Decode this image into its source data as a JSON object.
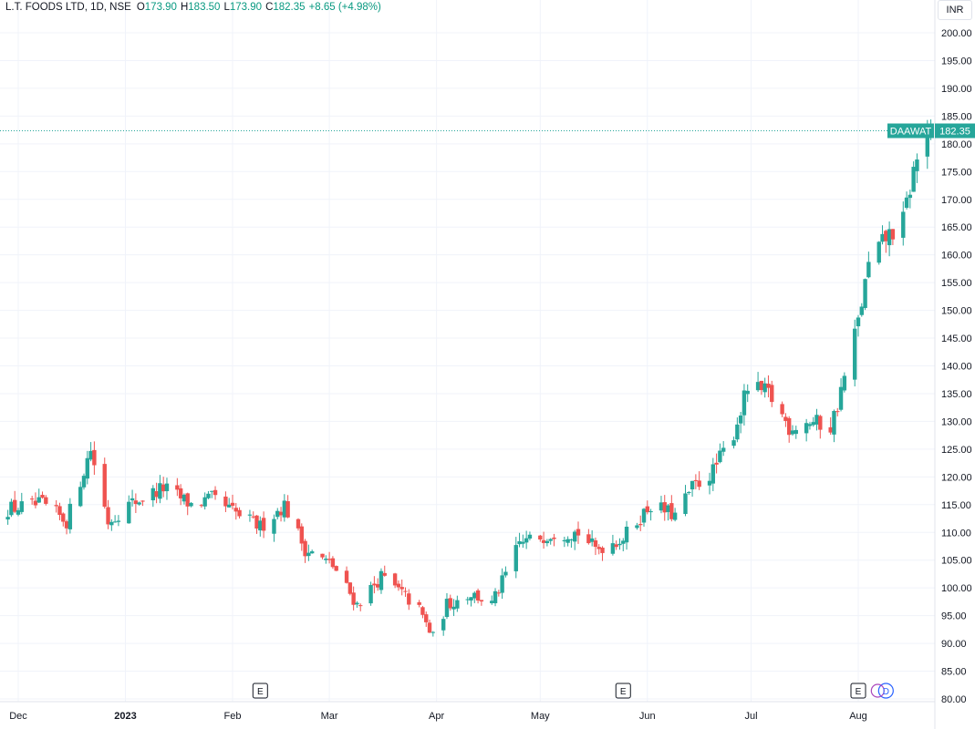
{
  "legend": {
    "symbol": "L.T. FOODS LTD, 1D, NSE",
    "open_label": "O",
    "open": "173.90",
    "high_label": "H",
    "high": "183.50",
    "low_label": "L",
    "low": "173.90",
    "close_label": "C",
    "close": "182.35",
    "change": "+8.65 (+4.98%)"
  },
  "currency": "INR",
  "price_tag": {
    "ticker": "DAAWAT",
    "price": "182.35"
  },
  "events": [
    {
      "label": "E",
      "date": "2023-02-09"
    },
    {
      "label": "E",
      "date": "2023-05-25"
    },
    {
      "label": "E",
      "date": "2023-08-01"
    },
    {
      "label": "D",
      "date": "2023-08-09"
    }
  ],
  "colors": {
    "up": "#26a69a",
    "down": "#ef5350",
    "grid": "#f0f3fa",
    "text": "#131722"
  },
  "chart_data": {
    "type": "candlestick",
    "y_axis_ticks": [
      "80.00",
      "85.00",
      "90.00",
      "95.00",
      "100.00",
      "105.00",
      "110.00",
      "115.00",
      "120.00",
      "125.00",
      "130.00",
      "135.00",
      "140.00",
      "145.00",
      "150.00",
      "155.00",
      "160.00",
      "165.00",
      "170.00",
      "175.00",
      "180.00",
      "185.00",
      "190.00",
      "195.00",
      "200.00"
    ],
    "x_axis_ticks": [
      {
        "label": "Dec",
        "date": "2022-12-01"
      },
      {
        "label": "2023",
        "date": "2023-01-01",
        "bold": true
      },
      {
        "label": "Feb",
        "date": "2023-02-01"
      },
      {
        "label": "Mar",
        "date": "2023-03-01"
      },
      {
        "label": "Apr",
        "date": "2023-04-01"
      },
      {
        "label": "May",
        "date": "2023-05-01"
      },
      {
        "label": "Jun",
        "date": "2023-06-01"
      },
      {
        "label": "Jul",
        "date": "2023-07-01"
      },
      {
        "label": "Aug",
        "date": "2023-08-01"
      }
    ],
    "ylim": [
      80,
      200
    ],
    "last_price": 182.35,
    "close_path": [
      [
        "2022-11-25",
        114
      ],
      [
        "2022-12-08",
        115
      ],
      [
        "2022-12-15",
        112
      ],
      [
        "2022-12-22",
        125
      ],
      [
        "2022-12-27",
        112
      ],
      [
        "2023-01-02",
        115
      ],
      [
        "2023-01-12",
        118
      ],
      [
        "2023-01-20",
        115
      ],
      [
        "2023-01-26",
        116
      ],
      [
        "2023-02-03",
        113
      ],
      [
        "2023-02-09",
        111
      ],
      [
        "2023-02-16",
        115
      ],
      [
        "2023-02-22",
        107
      ],
      [
        "2023-03-02",
        104
      ],
      [
        "2023-03-09",
        97
      ],
      [
        "2023-03-16",
        102
      ],
      [
        "2023-03-22",
        99
      ],
      [
        "2023-03-27",
        96
      ],
      [
        "2023-03-31",
        91
      ],
      [
        "2023-04-04",
        97
      ],
      [
        "2023-04-11",
        99
      ],
      [
        "2023-04-17",
        97
      ],
      [
        "2023-04-20",
        101
      ],
      [
        "2023-04-25",
        108
      ],
      [
        "2023-05-05",
        110
      ],
      [
        "2023-05-12",
        110
      ],
      [
        "2023-05-17",
        107
      ],
      [
        "2023-05-25",
        109
      ],
      [
        "2023-06-02",
        115
      ],
      [
        "2023-06-09",
        113
      ],
      [
        "2023-06-14",
        118
      ],
      [
        "2023-06-20",
        121
      ],
      [
        "2023-06-26",
        128
      ],
      [
        "2023-06-30",
        136
      ],
      [
        "2023-07-06",
        135
      ],
      [
        "2023-07-12",
        129
      ],
      [
        "2023-07-18",
        130
      ],
      [
        "2023-07-24",
        129
      ],
      [
        "2023-07-26",
        133
      ],
      [
        "2023-08-01",
        148
      ],
      [
        "2023-08-04",
        158
      ],
      [
        "2023-08-09",
        163
      ],
      [
        "2023-08-14",
        166
      ],
      [
        "2023-08-17",
        175
      ],
      [
        "2023-08-21",
        184
      ],
      [
        "2023-08-24",
        176
      ],
      [
        "2023-08-28",
        174
      ],
      [
        "2023-08-29",
        182.35
      ]
    ],
    "last_candle": {
      "open": 173.9,
      "high": 183.5,
      "low": 173.9,
      "close": 182.35
    }
  }
}
